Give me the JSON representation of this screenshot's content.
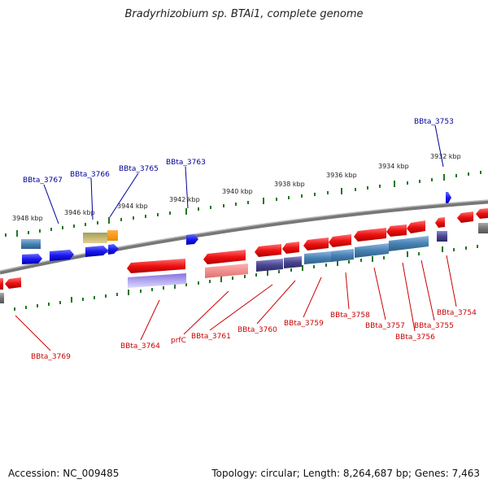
{
  "title": "Bradyrhizobium sp. BTAi1, complete genome",
  "footer": {
    "accession": "Accession: NC_009485",
    "stats": "Topology: circular; Length: 8,264,687 bp; Genes: 7,463"
  },
  "scale_labels": [
    "3948 kbp",
    "3946 kbp",
    "3944 kbp",
    "3942 kbp",
    "3940 kbp",
    "3938 kbp",
    "3936 kbp",
    "3934 kbp",
    "3932 kbp"
  ],
  "top_labels": [
    "BBta_3767",
    "BBta_3766",
    "BBta_3765",
    "BBta_3763",
    "BBta_3753"
  ],
  "bottom_labels": [
    "BBta_3769",
    "BBta_3764",
    "prfC",
    "BBta_3761",
    "BBta_3760",
    "BBta_3759",
    "BBta_3758",
    "BBta_3757",
    "BBta_3756",
    "BBta_3755",
    "BBta_3754"
  ],
  "colors": {
    "forward_gene": "#2222ee",
    "reverse_gene": "#ee1111",
    "top_label": "#000099",
    "bottom_label": "#cc0000",
    "tick": "#227722",
    "backbone": "#777777"
  }
}
